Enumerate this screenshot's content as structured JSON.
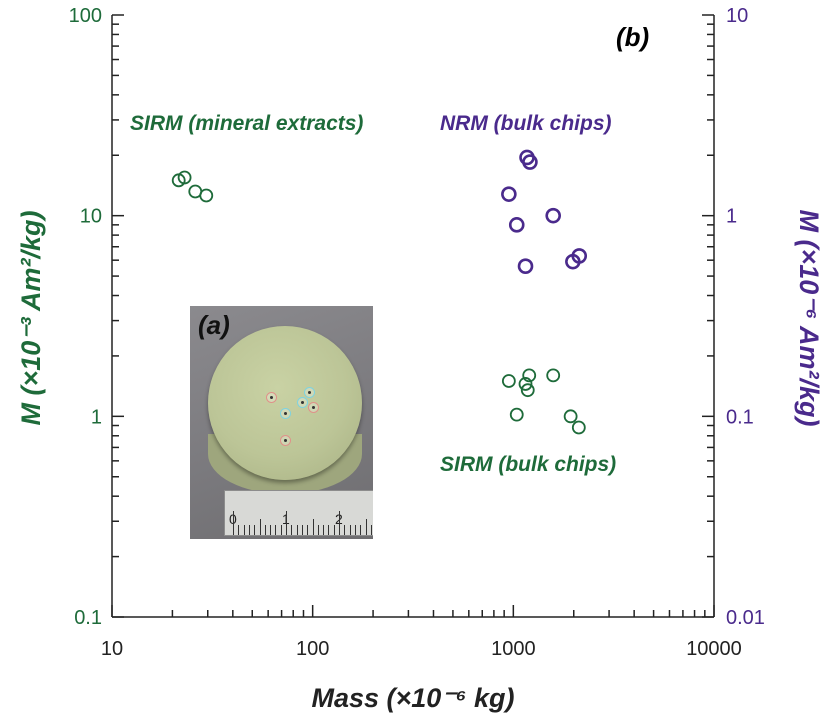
{
  "chart_data": {
    "type": "scatter",
    "panel_label": "(b)",
    "xscale": "log",
    "yscale": "log",
    "xlim": [
      10,
      10000
    ],
    "ylim_left": [
      0.1,
      100
    ],
    "ylim_right": [
      0.01,
      10
    ],
    "xlabel": "Mass (×10⁻⁶ kg)",
    "ylabel_left": "M (×10⁻³ Am²/kg)",
    "ylabel_right": "M (×10⁻⁶ Am²/kg)",
    "x_ticks": [
      "10",
      "100",
      "1000",
      "10000"
    ],
    "y_left_ticks": [
      "0.1",
      "1",
      "10",
      "100"
    ],
    "y_right_ticks": [
      "0.01",
      "0.1",
      "1",
      "10"
    ],
    "series": [
      {
        "name": "SIRM (mineral extracts)",
        "axis": "left",
        "color": "#1e6b3a",
        "x": [
          21.5,
          23,
          26,
          29.5
        ],
        "y": [
          15,
          15.5,
          13.2,
          12.6
        ]
      },
      {
        "name": "NRM (bulk chips)",
        "axis": "right",
        "color": "#4a2a8c",
        "x": [
          1170,
          1210,
          950,
          1040,
          1580,
          1150,
          1980,
          2130
        ],
        "y": [
          1.95,
          1.85,
          1.28,
          0.9,
          1.0,
          0.56,
          0.59,
          0.63
        ]
      },
      {
        "name": "SIRM (bulk chips)",
        "axis": "left",
        "color": "#1e6b3a",
        "x": [
          1200,
          950,
          1580,
          1150,
          1180,
          1040,
          1930,
          2120
        ],
        "y": [
          1.6,
          1.5,
          1.6,
          1.45,
          1.35,
          1.02,
          1.0,
          0.88
        ]
      }
    ],
    "annotations": {
      "sirm_mineral": "SIRM (mineral extracts)",
      "nrm_bulk": "NRM (bulk chips)",
      "sirm_bulk": "SIRM (bulk chips)"
    }
  },
  "inset": {
    "label": "(a)",
    "ruler_numbers": [
      "0",
      "1",
      "2"
    ]
  }
}
